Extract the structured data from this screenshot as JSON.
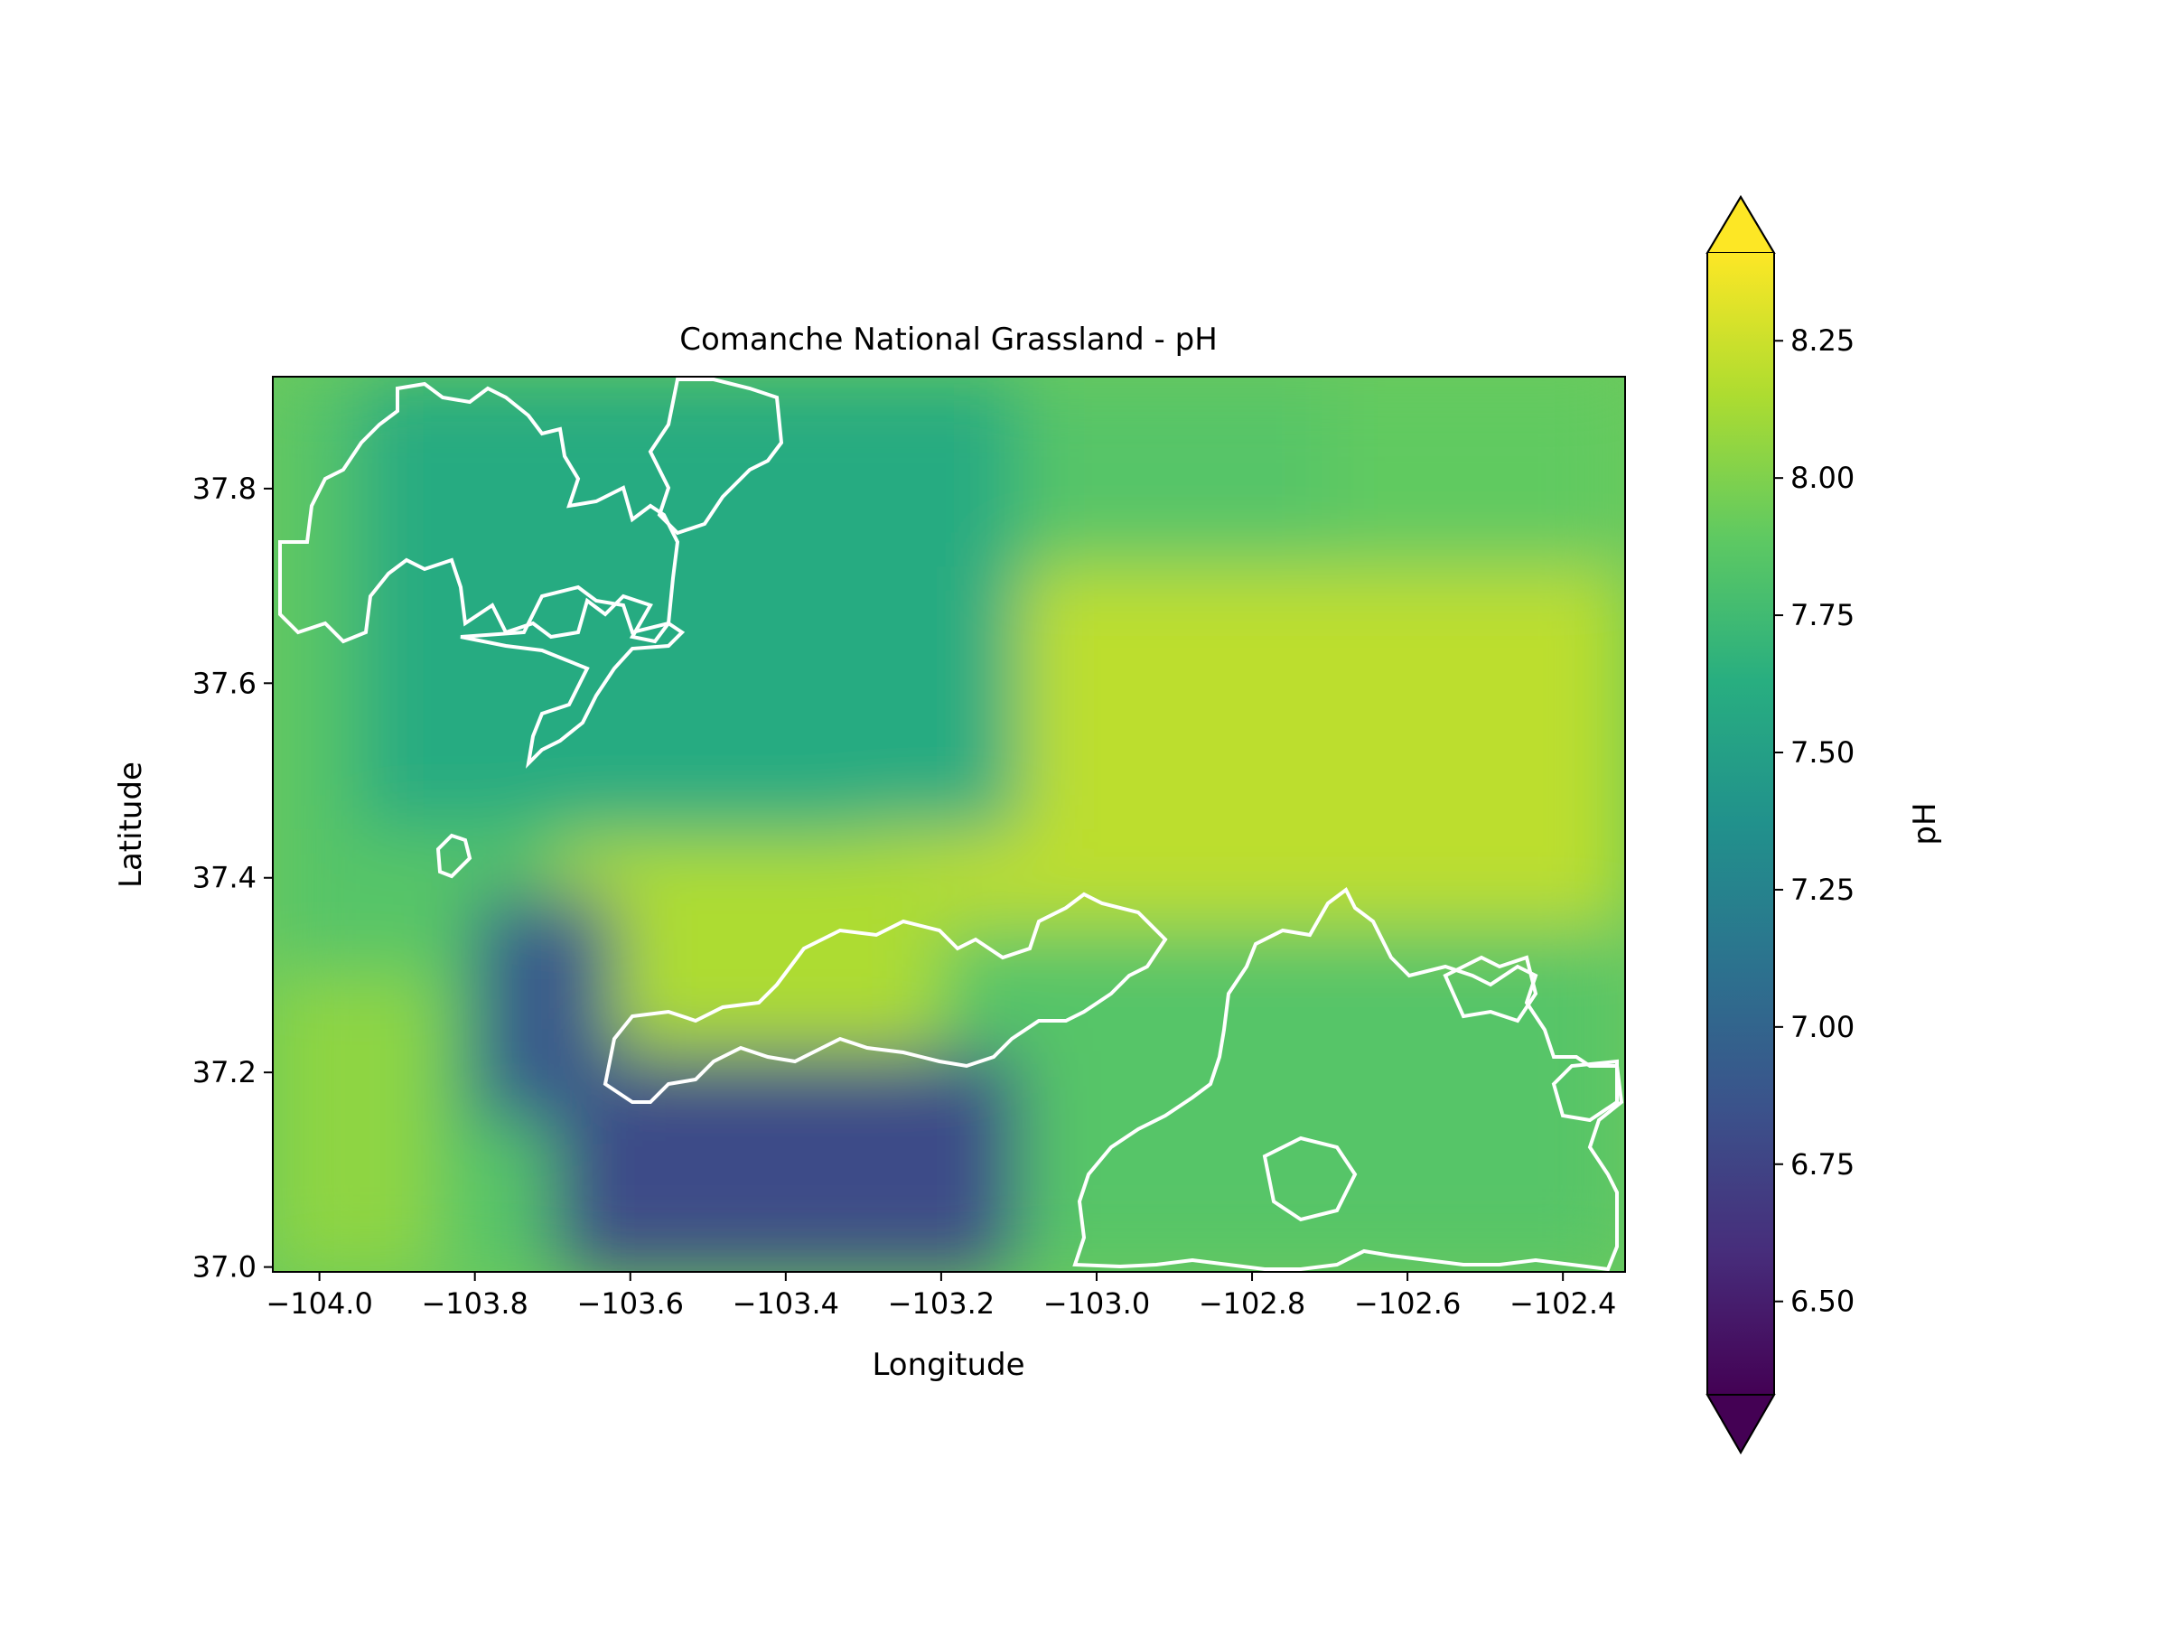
{
  "chart_data": {
    "type": "heatmap",
    "title": "Comanche National Grassland - pH",
    "xlabel": "Longitude",
    "ylabel": "Latitude",
    "xlim": [
      -104.06,
      -102.32
    ],
    "ylim": [
      36.995,
      37.915
    ],
    "xticks": [
      -104.0,
      -103.8,
      -103.6,
      -103.4,
      -103.2,
      -103.0,
      -102.8,
      -102.6,
      -102.4
    ],
    "xtick_labels": [
      "−104.0",
      "−103.8",
      "−103.6",
      "−103.4",
      "−103.2",
      "−103.0",
      "−102.8",
      "−102.6",
      "−102.4"
    ],
    "yticks": [
      37.0,
      37.2,
      37.4,
      37.6,
      37.8
    ],
    "ytick_labels": [
      "37.0",
      "37.2",
      "37.4",
      "37.6",
      "37.8"
    ],
    "colormap": "viridis",
    "colorbar": {
      "label": "pH",
      "vmin": 6.33,
      "vmax": 8.41,
      "extend": "both",
      "ticks": [
        6.5,
        6.75,
        7.0,
        7.25,
        7.5,
        7.75,
        8.0,
        8.25
      ],
      "tick_labels": [
        "6.50",
        "6.75",
        "7.00",
        "7.25",
        "7.50",
        "7.75",
        "8.00",
        "8.25"
      ]
    },
    "overlay": "grassland boundary outlines (white)",
    "grid": false,
    "regions": [
      {
        "x": [
          -104.06,
          -102.32
        ],
        "y": [
          36.995,
          37.915
        ],
        "ph": 7.85
      },
      {
        "x": [
          -103.3,
          -102.32
        ],
        "y": [
          37.35,
          37.72
        ],
        "ph": 8.2
      },
      {
        "x": [
          -103.7,
          -103.2
        ],
        "y": [
          37.22,
          37.44
        ],
        "ph": 8.15
      },
      {
        "x": [
          -103.95,
          -103.1
        ],
        "y": [
          37.45,
          37.915
        ],
        "ph": 7.6
      },
      {
        "x": [
          -103.7,
          -103.1
        ],
        "y": [
          36.995,
          37.22
        ],
        "ph": 6.8
      },
      {
        "x": [
          -103.8,
          -103.62
        ],
        "y": [
          37.15,
          37.38
        ],
        "ph": 6.9
      },
      {
        "x": [
          -102.7,
          -102.32
        ],
        "y": [
          37.75,
          37.915
        ],
        "ph": 7.9
      },
      {
        "x": [
          -104.06,
          -103.85
        ],
        "y": [
          36.995,
          37.3
        ],
        "ph": 8.05
      }
    ]
  }
}
